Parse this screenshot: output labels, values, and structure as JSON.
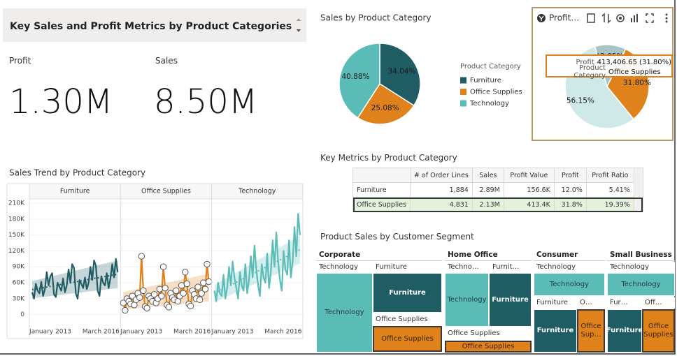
{
  "header": {
    "title": "Key Sales and Profit Metrics by Product Categories"
  },
  "kpis": [
    {
      "label": "Profit",
      "value": "1.30M"
    },
    {
      "label": "Sales",
      "value": "8.50M"
    }
  ],
  "chart_data": [
    {
      "type": "pie",
      "title": "Sales by Product Category",
      "legend": "right",
      "legend_title": "Product Category",
      "categories": [
        "Furniture",
        "Office Supplies",
        "Technology"
      ],
      "values": [
        34.04,
        25.08,
        40.88
      ],
      "value_labels": [
        "34.04%",
        "25.08%",
        "40.88%"
      ],
      "colors": [
        "#1f5c63",
        "#e0821b",
        "#5bbcb7"
      ]
    },
    {
      "type": "pie",
      "title": "Profit…",
      "legend": false,
      "categories": [
        "Furniture",
        "Office Supplies",
        "Technology"
      ],
      "values": [
        12.05,
        31.8,
        56.15
      ],
      "value_labels": [
        "12.05%",
        "31.80%",
        "56.15%"
      ],
      "colors": [
        "#a9c4c7",
        "#e0821b",
        "#cfe9e8"
      ],
      "tooltip": [
        [
          "Profit",
          "413,406.65 (31.80%)"
        ],
        [
          "Product Category",
          "Office Supplies"
        ]
      ]
    },
    {
      "type": "line",
      "title": "Sales Trend by Product Category",
      "grid": true,
      "x": [
        "2013-01",
        "2013-02",
        "2013-03",
        "2013-04",
        "2013-05",
        "2013-06",
        "2013-07",
        "2013-08",
        "2013-09",
        "2013-10",
        "2013-11",
        "2013-12",
        "2014-01",
        "2014-02",
        "2014-03",
        "2014-04",
        "2014-05",
        "2014-06",
        "2014-07",
        "2014-08",
        "2014-09",
        "2014-10",
        "2014-11",
        "2014-12",
        "2015-01",
        "2015-02",
        "2015-03",
        "2015-04",
        "2015-05",
        "2015-06",
        "2015-07",
        "2015-08",
        "2015-09",
        "2015-10",
        "2015-11",
        "2015-12",
        "2016-01",
        "2016-02",
        "2016-03",
        "2016-04",
        "2016-05",
        "2016-06",
        "2016-07",
        "2016-08",
        "2016-09",
        "2016-10",
        "2016-11",
        "2016-12"
      ],
      "xticks": [
        {
          "value": "2013-01",
          "label": "January 2013"
        },
        {
          "value": "2016-03",
          "label": "March 2016"
        }
      ],
      "ylim": [
        -15000,
        218000
      ],
      "yticks": [
        0,
        {
          "value": 30000,
          "label": "30K"
        },
        {
          "value": 60000,
          "label": "60K"
        },
        {
          "value": 90000,
          "label": "90K"
        },
        {
          "value": 120000,
          "label": "120K"
        },
        {
          "value": 150000,
          "label": "150K"
        },
        {
          "value": 180000,
          "label": "180K"
        },
        {
          "value": 210000,
          "label": "210K"
        }
      ],
      "series": [
        {
          "name": "Furniture",
          "color": "#1f5c63",
          "markers": false,
          "values": [
            42000,
            30000,
            58000,
            45000,
            40000,
            62000,
            35000,
            48000,
            80000,
            55000,
            72000,
            78000,
            38000,
            33000,
            60000,
            52000,
            45000,
            68000,
            42000,
            55000,
            85000,
            60000,
            95000,
            88000,
            40000,
            30000,
            65000,
            58000,
            50000,
            70000,
            48000,
            60000,
            90000,
            65000,
            102000,
            92000,
            45000,
            35000,
            72000,
            60000,
            55000,
            78000,
            50000,
            68000,
            95000,
            70000,
            105000,
            80000
          ]
        },
        {
          "name": "Office Supplies",
          "color": "#e0821b",
          "markers": true,
          "values": [
            22000,
            8000,
            30000,
            25000,
            20000,
            35000,
            18000,
            28000,
            40000,
            32000,
            110000,
            45000,
            15000,
            12000,
            35000,
            30000,
            25000,
            38000,
            22000,
            30000,
            48000,
            35000,
            90000,
            50000,
            18000,
            14000,
            40000,
            32000,
            28000,
            45000,
            25000,
            35000,
            55000,
            40000,
            80000,
            58000,
            20000,
            16000,
            45000,
            38000,
            30000,
            52000,
            28000,
            40000,
            60000,
            48000,
            95000,
            62000
          ]
        },
        {
          "name": "Technology",
          "color": "#5bbcb7",
          "markers": false,
          "values": [
            45000,
            25000,
            60000,
            40000,
            35000,
            75000,
            30000,
            50000,
            90000,
            55000,
            100000,
            70000,
            50000,
            30000,
            80000,
            55000,
            45000,
            95000,
            40000,
            65000,
            110000,
            70000,
            130000,
            85000,
            55000,
            35000,
            95000,
            70000,
            60000,
            115000,
            50000,
            80000,
            140000,
            90000,
            155000,
            100000,
            65000,
            45000,
            120000,
            85000,
            75000,
            140000,
            70000,
            100000,
            165000,
            110000,
            190000,
            150000
          ]
        }
      ]
    }
  ],
  "table": {
    "title": "Key Metrics by Product Category",
    "columns": [
      "# of Order Lines",
      "Sales",
      "Profit Value",
      "Profit",
      "Profit Ratio"
    ],
    "rows": [
      [
        "Furniture",
        "1,884",
        "2.89M",
        "156.6K",
        "12.0%",
        "5.41%"
      ],
      [
        "Office Supplies",
        "4,831",
        "2.13M",
        "413.4K",
        "31.8%",
        "19.39%"
      ]
    ]
  },
  "treemap": {
    "title": "Product Sales by Customer Segment",
    "segments": [
      {
        "name": "Corporate",
        "labels": [
          "Technology",
          "Furniture",
          "Office Supplies"
        ],
        "cells": [
          "Technology",
          "Furniture",
          "Office Supplies"
        ]
      },
      {
        "name": "Home Office",
        "labels": [
          "Techno…",
          "Furnit…",
          "Office Supplies"
        ],
        "cells": [
          "Technology",
          "Furniture",
          "Office Supplies"
        ]
      },
      {
        "name": "Consumer",
        "labels": [
          "Technology",
          "Furniture",
          "O…"
        ],
        "cells": [
          "Technology",
          "Furniture",
          "Office Sup…"
        ]
      },
      {
        "name": "Small Business",
        "labels": [
          "Technology",
          "Fur…",
          "Off…"
        ],
        "cells": [
          "Technology",
          "Furniture",
          "Office Supplies"
        ]
      }
    ]
  }
}
